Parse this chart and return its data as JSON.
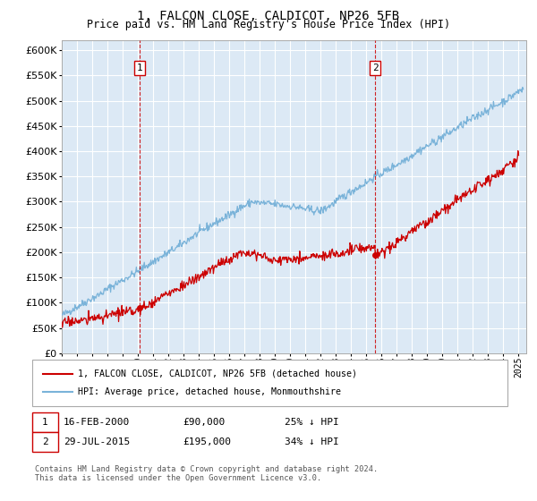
{
  "title": "1, FALCON CLOSE, CALDICOT, NP26 5FB",
  "subtitle": "Price paid vs. HM Land Registry's House Price Index (HPI)",
  "ylim": [
    0,
    620000
  ],
  "xlim_start": 1995.0,
  "xlim_end": 2025.5,
  "bg_color": "#dce9f5",
  "grid_color": "#ffffff",
  "hpi_color": "#7ab3d9",
  "price_color": "#cc0000",
  "marker1_date": 2000.12,
  "marker1_value": 90000,
  "marker2_date": 2015.57,
  "marker2_value": 195000,
  "legend_label1": "1, FALCON CLOSE, CALDICOT, NP26 5FB (detached house)",
  "legend_label2": "HPI: Average price, detached house, Monmouthshire",
  "annotation1_label": "16-FEB-2000",
  "annotation1_price": "£90,000",
  "annotation1_hpi": "25% ↓ HPI",
  "annotation2_label": "29-JUL-2015",
  "annotation2_price": "£195,000",
  "annotation2_hpi": "34% ↓ HPI",
  "footnote": "Contains HM Land Registry data © Crown copyright and database right 2024.\nThis data is licensed under the Open Government Licence v3.0."
}
